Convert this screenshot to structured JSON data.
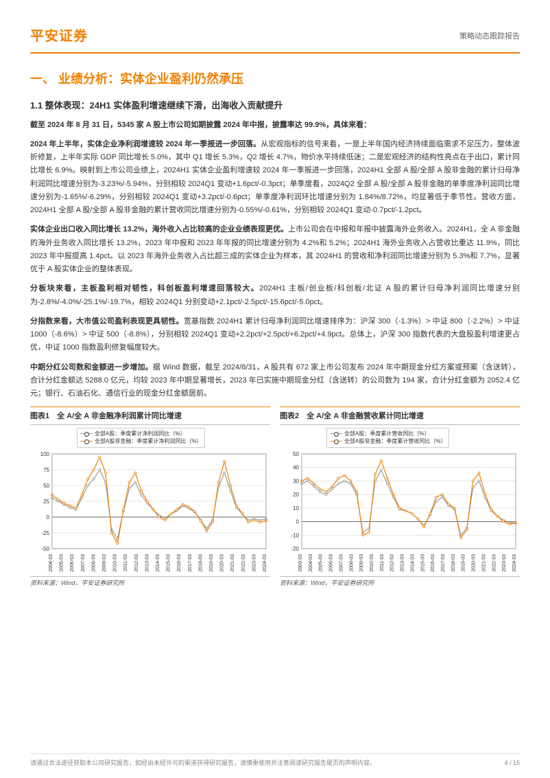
{
  "header": {
    "logo": "平安证券",
    "report_type": "策略动态跟踪报告"
  },
  "h1": "一、 业绩分析：实体企业盈利仍然承压",
  "h2": "1.1 整体表现：24H1 实体盈利增速继续下滑，出海收入贡献提升",
  "p1_bold": "截至 2024 年 8 月 31 日，5345 家 A 股上市公司如期披露 2024 年中报，披露率达 99.9%，具体来看：",
  "p2_bold": "2024 年上半年，实体企业净利润增速较 2024 年一季报进一步回落。",
  "p2": "从宏观指标的信号来看，一是上半年国内经济持续面临需求不足压力，整体波折修复，上半年实际 GDP 同比增长 5.0%，其中 Q1 增长 5.3%，Q2 增长 4.7%，物价水平持续低迷；二是宏观经济的结构性亮点在于出口，累计同比增长 6.9%。映射到上市公司业绩上，2024H1 实体企业盈利增速较 2024 年一季报进一步回落，2024H1 全部 A 股/全部 A 股非金融的累计归母净利润同比增速分别为-3.23%/-5.94%，分别相较 2024Q1 变动+1.6pct/-0.3pct；单季度看，2024Q2 全部 A 股/全部 A 股非金融的单季度净利润同比增速分别为-1.65%/-6.29%，分别相较 2024Q1 变动+3.2pct/-0.6pct；单季度净利润环比增速分别为 1.84%/8.72%，均显著低于季节性。营收方面，2024H1 全部 A 股/全部 A 股非金融的累计营收同比增速分别为-0.55%/-0.61%，分别相较 2024Q1 变动-0.7pct/-1.2pct。",
  "p3_bold": "实体企业出口收入同比增长 13.2%，海外收入占比较高的企业业绩表现更优。",
  "p3": "上市公司会在中报和年报中披露海外业务收入。2024H1，全 A 非金融的海外业务收入同比增长 13.2%，2023 年中报和 2023 年年报的同比增速分别为 4.2%和 5.2%；2024H1 海外业务收入占营收比重达 11.9%，同比 2023 年中报提高 1.4pct。以 2023 年海外业务收入占比超三成的实体企业为样本，其 2024H1 的营收和净利润同比增速分别为 5.3%和 7.7%，显著优于 A 股实体企业的整体表现。",
  "p4_bold": "分板块来看，主板盈利相对韧性，科创板盈利增速回落较大。",
  "p4": "2024H1 主板/创业板/科创板/北证 A 股的累计归母净利润同比增速分别为-2.8%/-4.0%/-25.1%/-19.7%，相较 2024Q1 分别变动+2.1pct/-2.5pct/-15.6pct/-5.0pct。",
  "p5_bold": "分指数来看，大市值公司盈利表现更具韧性。",
  "p5": "宽基指数 2024H1 累计归母净利润同比增速排序为：沪深 300（-1.3%）> 中证 800（-2.2%）> 中证 1000（-8.6%）> 中证 500（-8.8%），分别相较 2024Q1 变动+2.2pct/+2.5pct/+6.2pct/+4.9pct。总体上，沪深 300 指数代表的大盘股盈利增速更占优，中证 1000 指数盈利修复幅度较大。",
  "p6_bold": "中期分红公司数和金额进一步增加。",
  "p6": "据 Wind 数据，截至 2024/8/31，A 股共有 672 家上市公司发布 2024 年中期现金分红方案或预案（含送转），合计分红金额达 5288.0 亿元，均较 2023 年中期显著增长，2023 年已实施中期现金分红（含送转）的公司数为 194 家，合计分红金额为 2052.4 亿元；银行、石油石化、通信行业的现金分红金额居前。",
  "chart1": {
    "title": "图表1　全 A/全 A 非金融净利润累计同比增速",
    "type": "line",
    "legend": [
      "全部A股：季度累计净利润同比（%）",
      "全部A股非金融：季度累计净利润同比（%）"
    ],
    "colors": [
      "#999999",
      "#f08000"
    ],
    "background": "#ffffff",
    "grid_color": "#cccccc",
    "xlim": [
      "2004-03",
      "2024-03"
    ],
    "ylim": [
      -50,
      100
    ],
    "yticks": [
      -50,
      -25,
      0,
      25,
      50,
      75,
      100
    ],
    "xticks": [
      "2004-03",
      "2005-03",
      "2006-03",
      "2007-03",
      "2008-03",
      "2009-03",
      "2010-03",
      "2011-03",
      "2012-03",
      "2013-03",
      "2014-03",
      "2015-03",
      "2016-03",
      "2017-03",
      "2018-03",
      "2019-03",
      "2020-03",
      "2021-03",
      "2022-03",
      "2023-03",
      "2024-03"
    ],
    "series1_y": [
      30,
      25,
      20,
      15,
      12,
      30,
      50,
      60,
      75,
      55,
      -20,
      -35,
      10,
      45,
      55,
      35,
      22,
      12,
      3,
      -2,
      5,
      10,
      18,
      14,
      8,
      -5,
      -18,
      -5,
      48,
      70,
      42,
      15,
      5,
      -5,
      -3,
      -5,
      -3
    ],
    "series2_y": [
      35,
      28,
      22,
      18,
      14,
      35,
      60,
      75,
      95,
      70,
      -25,
      -42,
      12,
      55,
      70,
      42,
      25,
      12,
      0,
      -5,
      5,
      12,
      20,
      16,
      9,
      -6,
      -22,
      -8,
      55,
      88,
      50,
      18,
      6,
      -8,
      -5,
      -8,
      -6
    ],
    "source": "资料来源：Wind，平安证券研究所",
    "line_width": 1.2,
    "marker": "circle",
    "marker_size": 3,
    "font_size_axis": 8,
    "font_size_legend": 8
  },
  "chart2": {
    "title": "图表2　全 A/全 A 非金融营收累计同比增速",
    "type": "line",
    "legend": [
      "全部A股：季度累计营收同比（%）",
      "全部A股非金融：季度累计营收同比（%）"
    ],
    "colors": [
      "#999999",
      "#f08000"
    ],
    "background": "#ffffff",
    "grid_color": "#cccccc",
    "xlim": [
      "2003-03",
      "2024-03"
    ],
    "ylim": [
      -20,
      50
    ],
    "yticks": [
      -20,
      -10,
      0,
      10,
      20,
      30,
      40,
      50
    ],
    "xticks": [
      "2003-03",
      "2004-03",
      "2005-03",
      "2006-03",
      "2007-03",
      "2008-03",
      "2009-03",
      "2010-03",
      "2011-03",
      "2012-03",
      "2013-03",
      "2014-03",
      "2015-03",
      "2016-03",
      "2017-03",
      "2018-03",
      "2019-03",
      "2020-03",
      "2021-03",
      "2022-03",
      "2023-03",
      "2024-03"
    ],
    "series1_y": [
      28,
      30,
      26,
      22,
      20,
      24,
      28,
      30,
      28,
      20,
      -8,
      -5,
      30,
      38,
      28,
      18,
      9,
      8,
      6,
      2,
      -3,
      5,
      15,
      18,
      12,
      9,
      -10,
      -5,
      25,
      30,
      18,
      8,
      4,
      1,
      -1,
      -1
    ],
    "series2_y": [
      30,
      32,
      28,
      24,
      22,
      26,
      32,
      34,
      30,
      22,
      -10,
      -8,
      35,
      45,
      32,
      20,
      10,
      8,
      6,
      2,
      -4,
      6,
      18,
      20,
      13,
      10,
      -12,
      -6,
      30,
      36,
      20,
      9,
      4,
      0,
      -2,
      -1
    ],
    "source": "资料来源：Wind，平安证券研究所",
    "line_width": 1.2,
    "marker": "circle",
    "marker_size": 3,
    "font_size_axis": 8,
    "font_size_legend": 8
  },
  "footer": {
    "disclaimer": "请通过合法途径获取本公司研究报告，如经由未经许可的渠道获得研究报告，请慎重使用并注意阅读研究报告尾页的声明内容。",
    "page": "4 / 15"
  }
}
